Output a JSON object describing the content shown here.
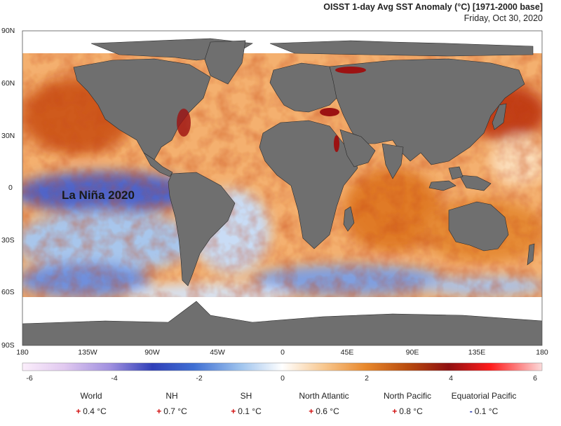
{
  "header": {
    "title": "OISST 1-day Avg SST Anomaly (°C) [1971-2000 base]",
    "date": "Friday, Oct 30, 2020"
  },
  "map": {
    "lat_labels": [
      "90N",
      "60N",
      "30N",
      "0",
      "30S",
      "60S",
      "90S"
    ],
    "lon_labels": [
      "180",
      "135W",
      "90W",
      "45W",
      "0",
      "45E",
      "90E",
      "135E",
      "180"
    ],
    "annotation": "La Niña 2020",
    "colors": {
      "land": "#6f6f6f",
      "ice": "#ffffff",
      "warm": "#e8872c",
      "hot": "#b31212",
      "cool": "#9dbde6",
      "cold": "#4a5fc4"
    }
  },
  "colorbar": {
    "ticks": [
      "-6",
      "-4",
      "-2",
      "0",
      "2",
      "4",
      "6"
    ]
  },
  "stats": [
    {
      "name": "World",
      "sign": "+",
      "value": "0.4 °C"
    },
    {
      "name": "NH",
      "sign": "+",
      "value": "0.7 °C"
    },
    {
      "name": "SH",
      "sign": "+",
      "value": "0.1 °C"
    },
    {
      "name": "North Atlantic",
      "sign": "+",
      "value": "0.6 °C"
    },
    {
      "name": "North Pacific",
      "sign": "+",
      "value": "0.8 °C"
    },
    {
      "name": "Equatorial Pacific",
      "sign": "-",
      "value": "0.1 °C"
    }
  ]
}
